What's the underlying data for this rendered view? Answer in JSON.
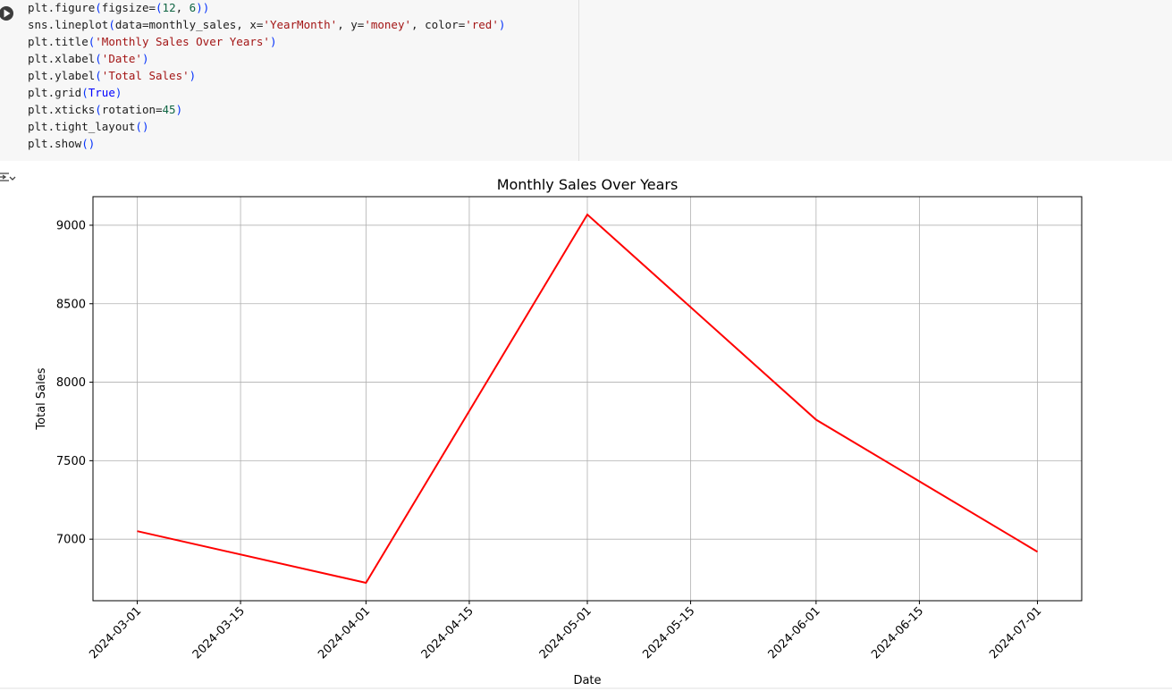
{
  "code": {
    "lines": [
      "plt.figure(figsize=(12, 6))",
      "sns.lineplot(data=monthly_sales, x='YearMonth', y='money', color='red')",
      "plt.title('Monthly Sales Over Years')",
      "plt.xlabel('Date')",
      "plt.ylabel('Total Sales')",
      "plt.grid(True)",
      "plt.xticks(rotation=45)",
      "plt.tight_layout()",
      "plt.show()"
    ]
  },
  "chart_data": {
    "type": "line",
    "title": "Monthly Sales Over Years",
    "x_label": "Date",
    "y_label": "Total Sales",
    "x": [
      "2024-03-01",
      "2024-04-01",
      "2024-05-01",
      "2024-06-01",
      "2024-07-01"
    ],
    "values": [
      7051,
      6722,
      9068,
      7761,
      6920
    ],
    "color": "#ff0000",
    "xlim": [
      "2024-02-24",
      "2024-07-07"
    ],
    "xticks": [
      "2024-03-01",
      "2024-03-15",
      "2024-04-01",
      "2024-04-15",
      "2024-05-01",
      "2024-05-15",
      "2024-06-01",
      "2024-06-15",
      "2024-07-01"
    ],
    "ylim": [
      6608,
      9182
    ],
    "yticks": [
      7000,
      7500,
      8000,
      8500,
      9000
    ],
    "grid": true
  }
}
